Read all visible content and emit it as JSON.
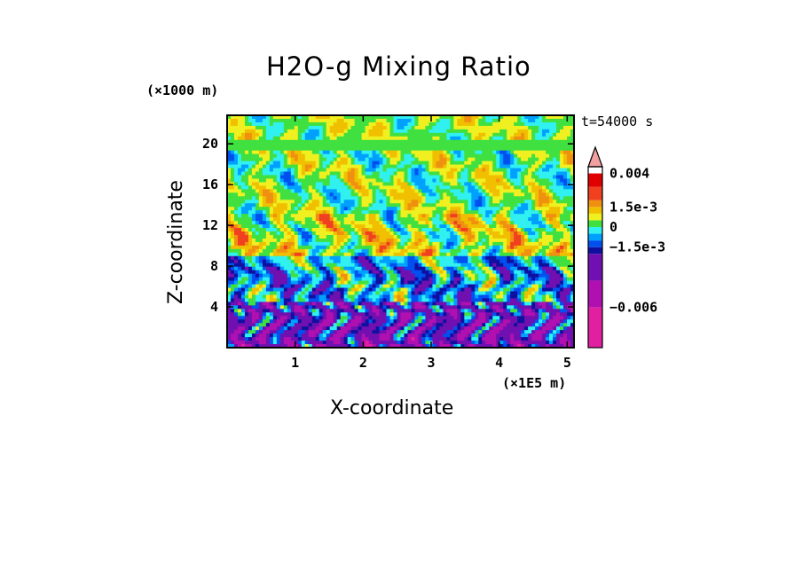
{
  "chart_data": {
    "type": "heatmap",
    "title": "H2O-g Mixing Ratio",
    "xlabel": "X-coordinate",
    "ylabel": "Z-coordinate",
    "x_unit_label": "(×1E5 m)",
    "y_unit_label": "(×1000 m)",
    "time_label": "t=54000 s",
    "xlim": [
      0,
      5.1
    ],
    "ylim": [
      0,
      22.8
    ],
    "x_ticks": [
      "1",
      "2",
      "3",
      "4",
      "5"
    ],
    "x_tick_values": [
      1,
      2,
      3,
      4,
      5
    ],
    "y_ticks": [
      "4",
      "8",
      "12",
      "16",
      "20"
    ],
    "y_tick_values": [
      4,
      8,
      12,
      16,
      20
    ],
    "colorbar": {
      "labels": [
        "0.004",
        "1.5e-3",
        "0",
        "−1.5e-3",
        "−0.006"
      ],
      "label_values": [
        0.004,
        0.0015,
        0,
        -0.0015,
        -0.006
      ],
      "range": [
        -0.009,
        0.0045
      ],
      "levels": [
        -0.009,
        -0.006,
        -0.004,
        -0.002,
        -0.0015,
        -0.001,
        -0.0005,
        0,
        0.0005,
        0.001,
        0.0015,
        0.002,
        0.003,
        0.004
      ],
      "colors": [
        "#e020a0",
        "#b010b0",
        "#7010b0",
        "#1010a0",
        "#0050f0",
        "#00a0ff",
        "#30f0f0",
        "#40e040",
        "#f0f020",
        "#f0c000",
        "#f09010",
        "#f04020",
        "#e00000",
        "#f0a0a0"
      ],
      "extend": "max"
    }
  }
}
